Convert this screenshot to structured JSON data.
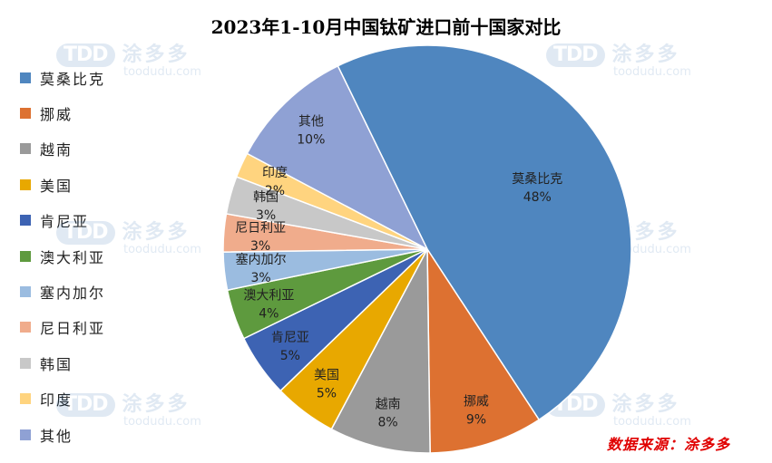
{
  "chart_data": {
    "type": "pie",
    "title": "2023年1-10月中国钛矿进口前十国家对比",
    "slices": [
      {
        "name": "莫桑比克",
        "value": 48,
        "label": "48%",
        "color": "#4f86bf"
      },
      {
        "name": "挪威",
        "value": 9,
        "label": "9%",
        "color": "#dd7131"
      },
      {
        "name": "越南",
        "value": 8,
        "label": "8%",
        "color": "#9a9a9a"
      },
      {
        "name": "美国",
        "value": 5,
        "label": "5%",
        "color": "#e8a800"
      },
      {
        "name": "肯尼亚",
        "value": 5,
        "label": "5%",
        "color": "#3d63b3"
      },
      {
        "name": "澳大利亚",
        "value": 4,
        "label": "4%",
        "color": "#5e9a3e"
      },
      {
        "name": "塞内加尔",
        "value": 3,
        "label": "3%",
        "color": "#9bbce0"
      },
      {
        "name": "尼日利亚",
        "value": 3,
        "label": "3%",
        "color": "#f0ac8c"
      },
      {
        "name": "韩国",
        "value": 3,
        "label": "3%",
        "color": "#c8c8c8"
      },
      {
        "name": "印度",
        "value": 2,
        "label": "2%",
        "color": "#ffd47f"
      },
      {
        "name": "其他",
        "value": 10,
        "label": "10%",
        "color": "#8fa1d4"
      }
    ],
    "legend_position": "left"
  },
  "watermark": {
    "logo": "TDD",
    "brand": "涂多多",
    "url": "toodudu.com"
  },
  "source_note": "数据来源：涂多多"
}
